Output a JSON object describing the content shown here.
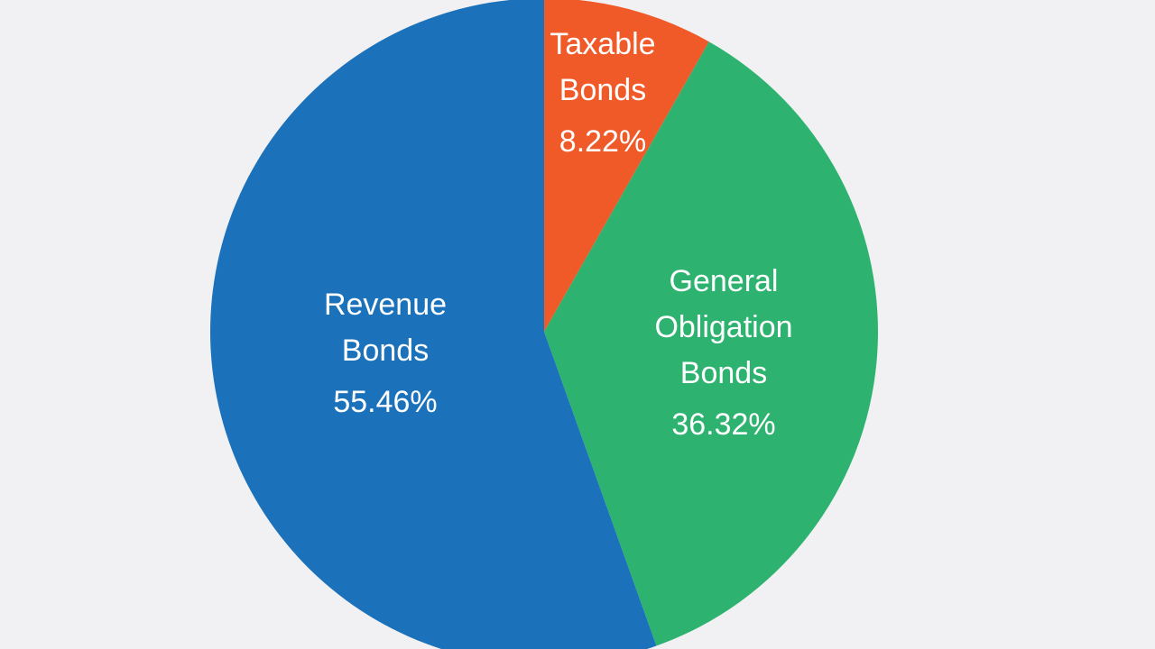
{
  "chart_data": {
    "type": "pie",
    "start_angle": "12 o'clock",
    "direction": "clockwise",
    "slices": [
      {
        "label_lines": [
          "Taxable",
          "Bonds"
        ],
        "value_text": "8.22%",
        "value": 8.22,
        "color": "#f05a28"
      },
      {
        "label_lines": [
          "General",
          "Obligation",
          "Bonds"
        ],
        "value_text": "36.32%",
        "value": 36.32,
        "color": "#2db36f"
      },
      {
        "label_lines": [
          "Revenue",
          "Bonds"
        ],
        "value_text": "55.46%",
        "value": 55.46,
        "color": "#1b72ba"
      }
    ]
  }
}
